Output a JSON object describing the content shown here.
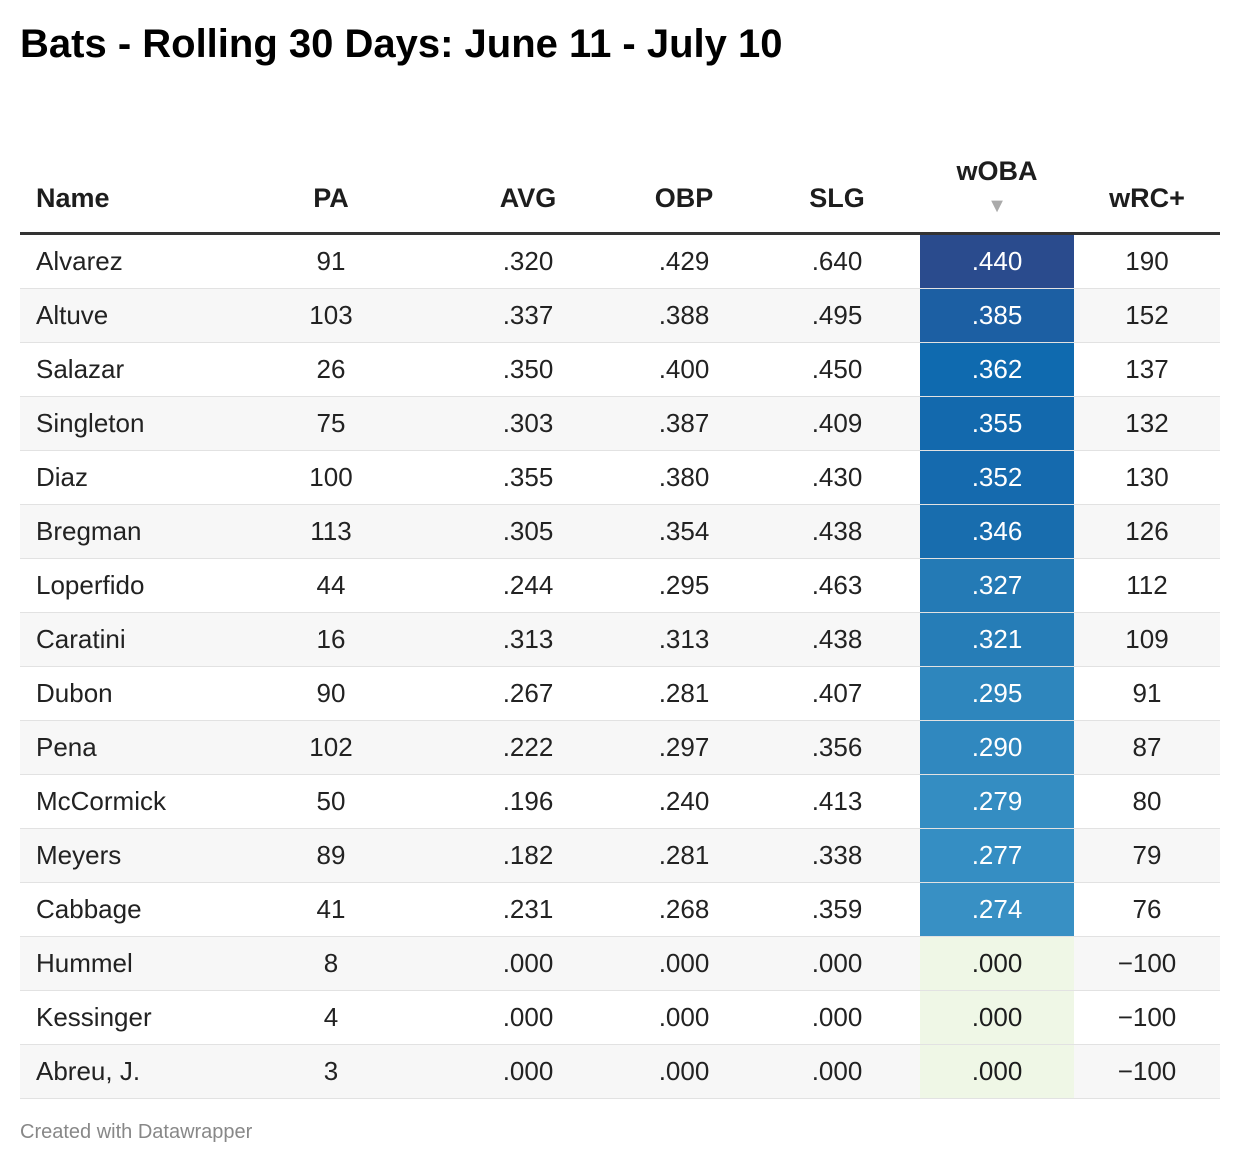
{
  "title": "Bats - Rolling 30 Days: June 11 - July 10",
  "footer": "Created with Datawrapper",
  "sort_icon": "sort-descending-icon",
  "colors": {
    "woba_scale": {
      "zero": "#eff7e6",
      "low": "#3890c4",
      "high": "#2a4b8d"
    }
  },
  "chart_data": {
    "type": "table",
    "title": "Bats - Rolling 30 Days: June 11 - July 10",
    "columns": [
      "Name",
      "PA",
      "AVG",
      "OBP",
      "SLG",
      "wOBA",
      "wRC+"
    ],
    "sorted_by": "wOBA",
    "sort_direction": "descending",
    "rows": [
      {
        "name": "Alvarez",
        "pa": "91",
        "avg": ".320",
        "obp": ".429",
        "slg": ".640",
        "woba": ".440",
        "wrc": "190",
        "woba_color": "#2a4b8d"
      },
      {
        "name": "Altuve",
        "pa": "103",
        "avg": ".337",
        "obp": ".388",
        "slg": ".495",
        "woba": ".385",
        "wrc": "152",
        "woba_color": "#1c5fa3"
      },
      {
        "name": "Salazar",
        "pa": "26",
        "avg": ".350",
        "obp": ".400",
        "slg": ".450",
        "woba": ".362",
        "wrc": "137",
        "woba_color": "#0f6aaf"
      },
      {
        "name": "Singleton",
        "pa": "75",
        "avg": ".303",
        "obp": ".387",
        "slg": ".409",
        "woba": ".355",
        "wrc": "132",
        "woba_color": "#1369ad"
      },
      {
        "name": "Diaz",
        "pa": "100",
        "avg": ".355",
        "obp": ".380",
        "slg": ".430",
        "woba": ".352",
        "wrc": "130",
        "woba_color": "#156aae"
      },
      {
        "name": "Bregman",
        "pa": "113",
        "avg": ".305",
        "obp": ".354",
        "slg": ".438",
        "woba": ".346",
        "wrc": "126",
        "woba_color": "#186dae"
      },
      {
        "name": "Loperfido",
        "pa": "44",
        "avg": ".244",
        "obp": ".295",
        "slg": ".463",
        "woba": ".327",
        "wrc": "112",
        "woba_color": "#247ab5"
      },
      {
        "name": "Caratini",
        "pa": "16",
        "avg": ".313",
        "obp": ".313",
        "slg": ".438",
        "woba": ".321",
        "wrc": "109",
        "woba_color": "#267db7"
      },
      {
        "name": "Dubon",
        "pa": "90",
        "avg": ".267",
        "obp": ".281",
        "slg": ".407",
        "woba": ".295",
        "wrc": "91",
        "woba_color": "#2e86bd"
      },
      {
        "name": "Pena",
        "pa": "102",
        "avg": ".222",
        "obp": ".297",
        "slg": ".356",
        "woba": ".290",
        "wrc": "87",
        "woba_color": "#3088bf"
      },
      {
        "name": "McCormick",
        "pa": "50",
        "avg": ".196",
        "obp": ".240",
        "slg": ".413",
        "woba": ".279",
        "wrc": "80",
        "woba_color": "#348dc2"
      },
      {
        "name": "Meyers",
        "pa": "89",
        "avg": ".182",
        "obp": ".281",
        "slg": ".338",
        "woba": ".277",
        "wrc": "79",
        "woba_color": "#358ec3"
      },
      {
        "name": "Cabbage",
        "pa": "41",
        "avg": ".231",
        "obp": ".268",
        "slg": ".359",
        "woba": ".274",
        "wrc": "76",
        "woba_color": "#3890c4"
      },
      {
        "name": "Hummel",
        "pa": "8",
        "avg": ".000",
        "obp": ".000",
        "slg": ".000",
        "woba": ".000",
        "wrc": "−100",
        "woba_color": "#eff7e6"
      },
      {
        "name": "Kessinger",
        "pa": "4",
        "avg": ".000",
        "obp": ".000",
        "slg": ".000",
        "woba": ".000",
        "wrc": "−100",
        "woba_color": "#eff7e6"
      },
      {
        "name": "Abreu, J.",
        "pa": "3",
        "avg": ".000",
        "obp": ".000",
        "slg": ".000",
        "woba": ".000",
        "wrc": "−100",
        "woba_color": "#eff7e6"
      }
    ]
  }
}
